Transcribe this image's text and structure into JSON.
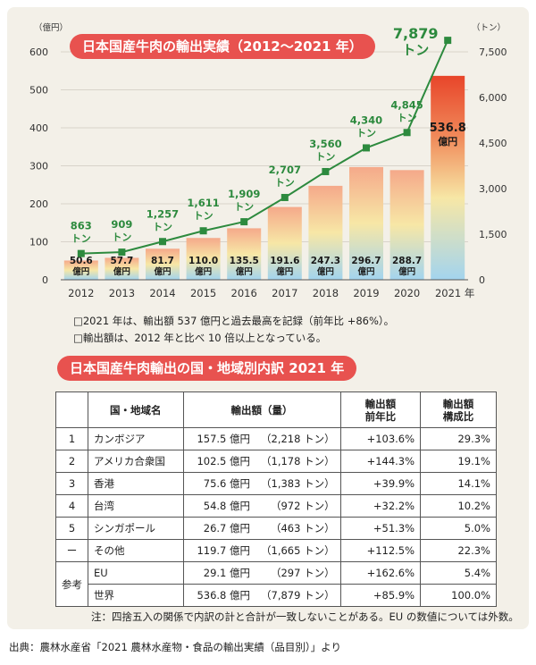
{
  "chart_data": {
    "type": "bar",
    "title": "日本国産牛肉の輸出実績（2012～2021 年）",
    "left_axis_unit": "（億円）",
    "right_axis_unit": "（トン）",
    "x_unit": "年",
    "categories": [
      "2012",
      "2013",
      "2014",
      "2015",
      "2016",
      "2017",
      "2018",
      "2019",
      "2020",
      "2021"
    ],
    "left_ticks": [
      "0",
      "100",
      "200",
      "300",
      "400",
      "500",
      "600"
    ],
    "right_ticks": [
      "0",
      "1,500",
      "3,000",
      "4,500",
      "6,000",
      "7,500"
    ],
    "ylim_left": [
      0,
      600
    ],
    "ylim_right": [
      0,
      7500
    ],
    "series": [
      {
        "kind": "bar",
        "axis": "left",
        "values": [
          50.6,
          57.7,
          81.7,
          110.0,
          135.5,
          191.6,
          247.3,
          296.7,
          288.7,
          536.8
        ],
        "labels": [
          "50.6",
          "57.7",
          "81.7",
          "110.0",
          "135.5",
          "191.6",
          "247.3",
          "296.7",
          "288.7",
          "536.8"
        ],
        "unit": "億円"
      },
      {
        "kind": "line",
        "axis": "right",
        "values": [
          863,
          909,
          1257,
          1611,
          1909,
          2707,
          3560,
          4340,
          4845,
          7879
        ],
        "labels": [
          "863",
          "909",
          "1,257",
          "1,611",
          "1,909",
          "2,707",
          "3,560",
          "4,340",
          "4,845",
          "7,879"
        ],
        "unit": "トン"
      }
    ],
    "colors": {
      "bar_top": "#f5a98a",
      "bar_bottom": "#a3d4ee",
      "bar_2021_top": "#e8452a",
      "line": "#2d8a3e",
      "line_label": "#2d8a3e"
    }
  },
  "notes": [
    "□2021 年は、輸出額 537 億円と過去最高を記録（前年比 +86%）。",
    "□輸出額は、2012 年と比べ 10 倍以上となっている。"
  ],
  "table": {
    "title": "日本国産牛肉輸出の国・地域別内訳 2021 年",
    "headers": {
      "region": "国・地域名",
      "amount": "輸出額（量）",
      "yoy_1": "輸出額",
      "yoy_2": "前年比",
      "share_1": "輸出額",
      "share_2": "構成比"
    },
    "rows": [
      {
        "rank": "1",
        "name": "カンボジア",
        "amount": "157.5 億円",
        "qty": "（2,218 トン）",
        "yoy": "+103.6%",
        "share": "29.3%"
      },
      {
        "rank": "2",
        "name": "アメリカ合衆国",
        "amount": "102.5 億円",
        "qty": "（1,178 トン）",
        "yoy": "+144.3%",
        "share": "19.1%"
      },
      {
        "rank": "3",
        "name": "香港",
        "amount": "75.6 億円",
        "qty": "（1,383 トン）",
        "yoy": "+39.9%",
        "share": "14.1%"
      },
      {
        "rank": "4",
        "name": "台湾",
        "amount": "54.8 億円",
        "qty": "（972 トン）",
        "yoy": "+32.2%",
        "share": "10.2%"
      },
      {
        "rank": "5",
        "name": "シンガポール",
        "amount": "26.7 億円",
        "qty": "（463 トン）",
        "yoy": "+51.3%",
        "share": "5.0%"
      },
      {
        "rank": "ー",
        "name": "その他",
        "amount": "119.7 億円",
        "qty": "（1,665 トン）",
        "yoy": "+112.5%",
        "share": "22.3%"
      }
    ],
    "reference_label": "参考",
    "reference_rows": [
      {
        "name": "EU",
        "amount": "29.1 億円",
        "qty": "（297 トン）",
        "yoy": "+162.6%",
        "share": "5.4%"
      },
      {
        "name": "世界",
        "amount": "536.8 億円",
        "qty": "（7,879 トン）",
        "yoy": "+85.9%",
        "share": "100.0%"
      }
    ]
  },
  "footnote": "注：四捨五入の関係で内訳の計と合計が一致しないことがある。EU の数値については外数。",
  "source": "出典：農林水産省「2021 農林水産物・食品の輸出実績（品目別）」より"
}
